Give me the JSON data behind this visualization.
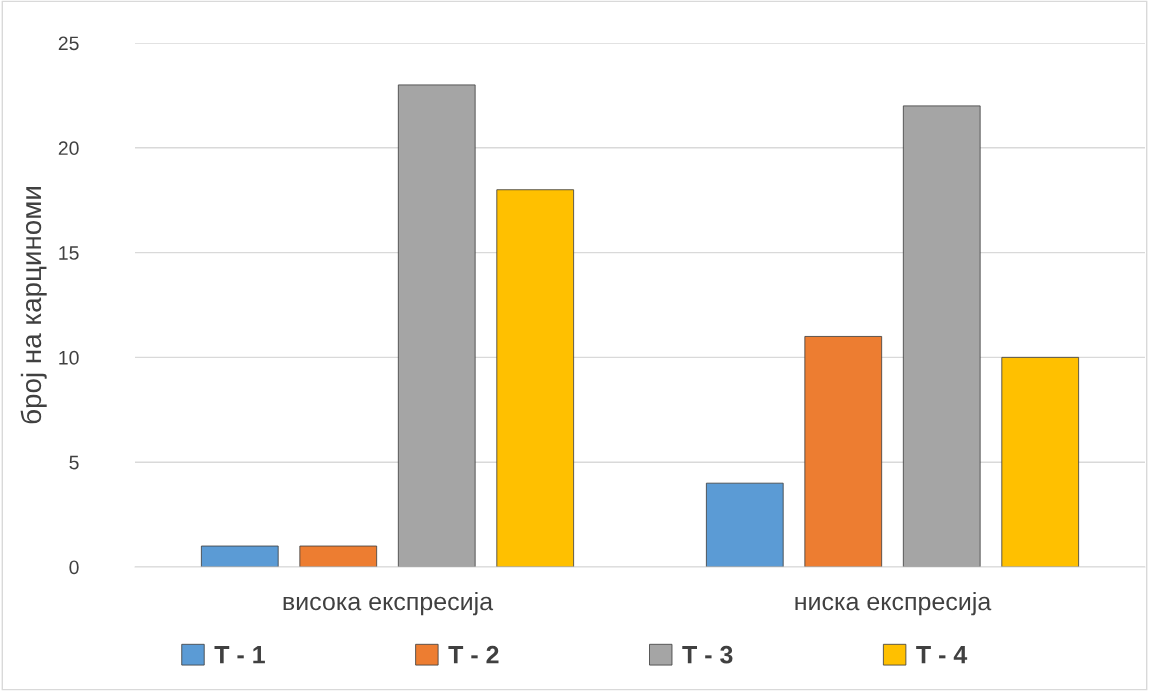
{
  "chart_data": {
    "type": "bar",
    "ylabel": "број на карциноми",
    "categories": [
      "висока експресија",
      "ниска експресија"
    ],
    "series": [
      {
        "name": "T - 1",
        "color": "#5b9bd5",
        "values": [
          1,
          4
        ]
      },
      {
        "name": "T - 2",
        "color": "#ed7d31",
        "values": [
          1,
          11
        ]
      },
      {
        "name": "T - 3",
        "color": "#a5a5a5",
        "values": [
          23,
          22
        ]
      },
      {
        "name": "T - 4",
        "color": "#ffc000",
        "values": [
          18,
          10
        ]
      }
    ],
    "ylim": [
      0,
      25
    ],
    "yticks": [
      0,
      5,
      10,
      15,
      20,
      25
    ],
    "grid": "y",
    "legend": "bottom"
  }
}
